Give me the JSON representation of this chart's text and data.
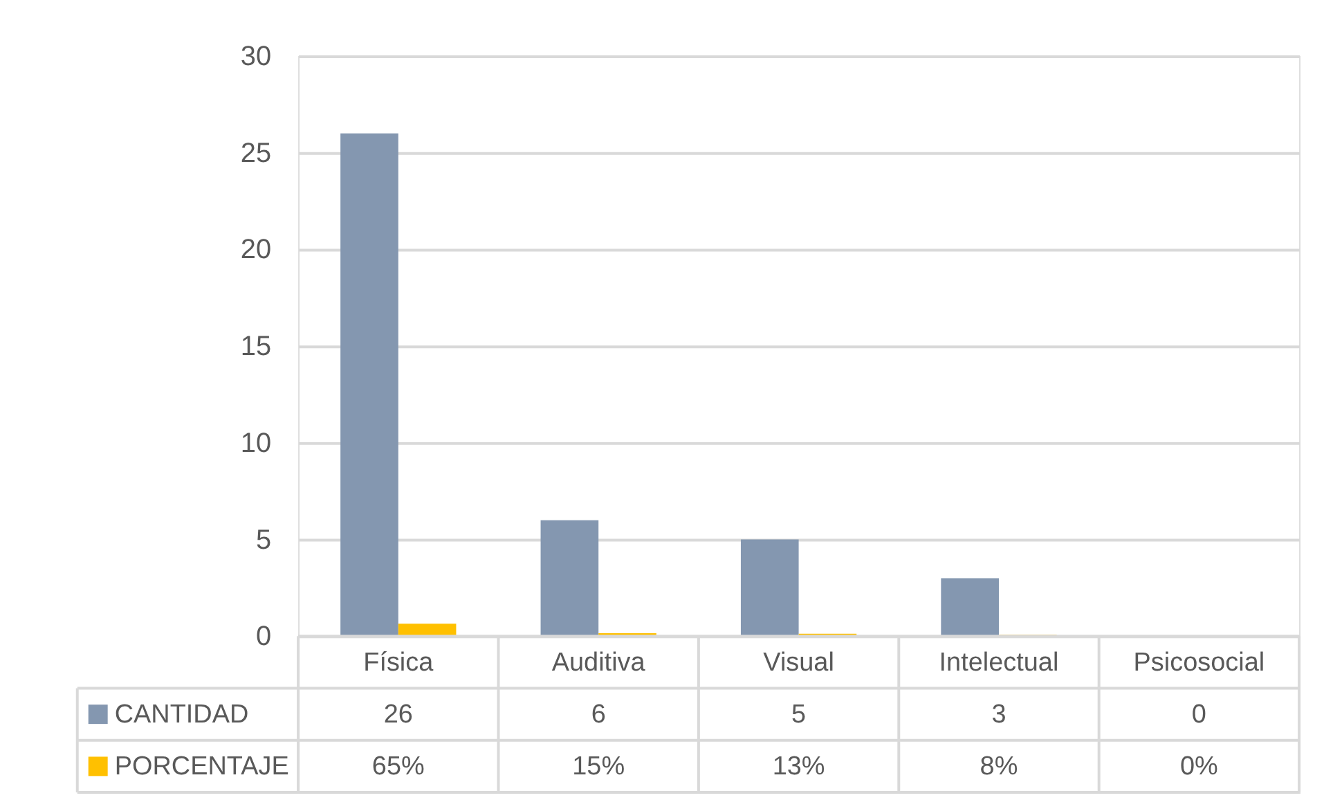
{
  "chart_data": {
    "type": "bar",
    "categories": [
      "Física",
      "Auditiva",
      "Visual",
      "Intelectual",
      "Psicosocial"
    ],
    "series": [
      {
        "name": "CANTIDAD",
        "color": "#8497b0",
        "values": [
          26,
          6,
          5,
          3,
          0
        ],
        "value_labels": [
          "26",
          "6",
          "5",
          "3",
          "0"
        ]
      },
      {
        "name": "PORCENTAJE",
        "color": "#ffc000",
        "values": [
          0.65,
          0.15,
          0.13,
          0.08,
          0
        ],
        "value_labels": [
          "65%",
          "15%",
          "13%",
          "8%",
          "0%"
        ]
      }
    ],
    "ylim": [
      0,
      30
    ],
    "yticks": [
      0,
      5,
      10,
      15,
      20,
      25,
      30
    ],
    "grid": "y",
    "legend": "bottom"
  }
}
